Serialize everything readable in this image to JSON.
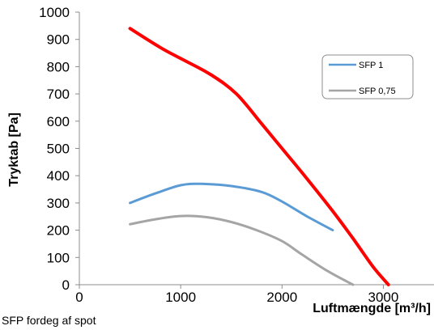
{
  "chart_data": {
    "type": "line",
    "xlabel": "Luftmængde  [m³/h]",
    "ylabel": "Tryktab [Pa]",
    "xlim": [
      0,
      3500
    ],
    "ylim": [
      0,
      1000
    ],
    "x_ticks": [
      0,
      1000,
      2000,
      3000
    ],
    "y_ticks": [
      0,
      100,
      200,
      300,
      400,
      500,
      600,
      700,
      800,
      900,
      1000
    ],
    "legend_position": "top-right",
    "grid": false,
    "series": [
      {
        "color": "#ff0000",
        "x": [
          500,
          800,
          1000,
          1300,
          1550,
          1800,
          2000,
          2200,
          2500,
          2700,
          2900,
          3050
        ],
        "y": [
          940,
          870,
          830,
          770,
          700,
          590,
          500,
          410,
          270,
          170,
          65,
          0
        ]
      },
      {
        "name": "SFP 1",
        "color": "#5b9bd5",
        "x": [
          500,
          750,
          1000,
          1200,
          1500,
          1800,
          2000,
          2250,
          2500
        ],
        "y": [
          300,
          335,
          365,
          370,
          362,
          340,
          305,
          250,
          200
        ]
      },
      {
        "name": "SFP 0,75",
        "color": "#a5a5a5",
        "x": [
          500,
          750,
          1000,
          1250,
          1500,
          1750,
          2000,
          2200,
          2450,
          2700
        ],
        "y": [
          222,
          240,
          252,
          248,
          230,
          200,
          160,
          110,
          50,
          0
        ]
      }
    ]
  },
  "caption": "SFP fordeg af spot"
}
